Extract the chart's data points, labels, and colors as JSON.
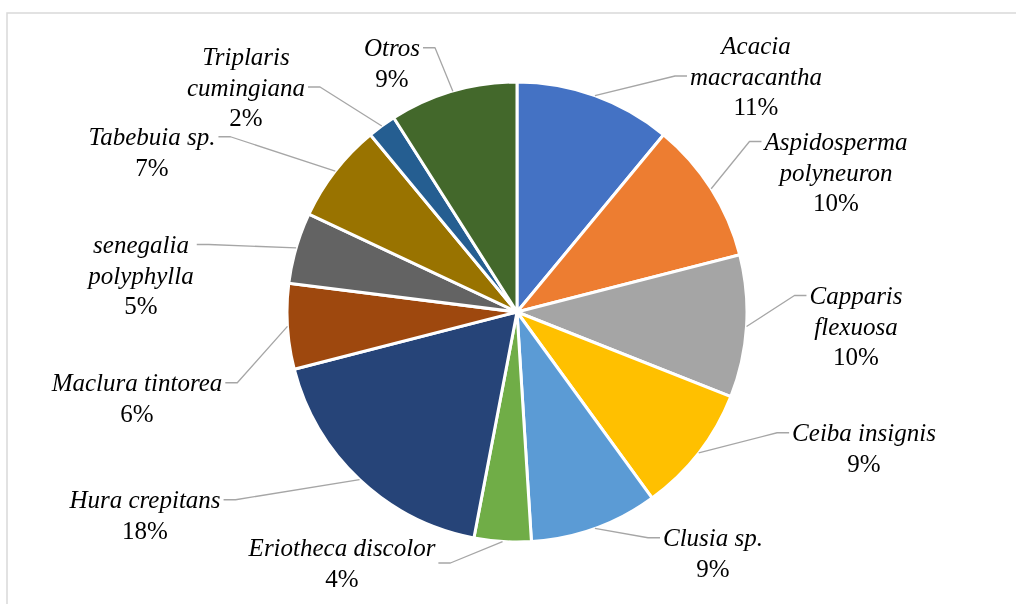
{
  "chart_data": {
    "type": "pie",
    "categories": [
      "Acacia macracantha",
      "Aspidosperma polyneuron",
      "Capparis flexuosa",
      "Ceiba insignis",
      "Clusia sp.",
      "Eriotheca discolor",
      "Hura crepitans",
      "Maclura tintorea",
      "senegalia polyphylla",
      "Tabebuia sp.",
      "Triplaris cumingiana",
      "Otros"
    ],
    "values": [
      11,
      10,
      10,
      9,
      9,
      4,
      18,
      6,
      5,
      7,
      2,
      9
    ],
    "colors": [
      "#4472c4",
      "#ed7d31",
      "#a5a5a5",
      "#ffc000",
      "#5b9bd5",
      "#70ad47",
      "#264478",
      "#9e480e",
      "#636363",
      "#997300",
      "#255e91",
      "#43682b"
    ],
    "value_labels": [
      "11%",
      "10%",
      "10%",
      "9%",
      "9%",
      "4%",
      "18%",
      "6%",
      "5%",
      "7%",
      "2%",
      "9%"
    ]
  }
}
